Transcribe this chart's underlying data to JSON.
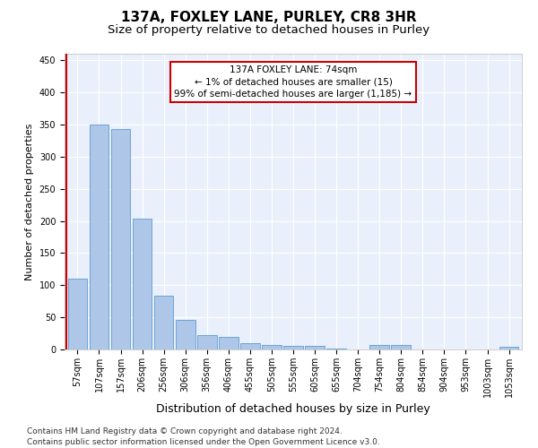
{
  "title": "137A, FOXLEY LANE, PURLEY, CR8 3HR",
  "subtitle": "Size of property relative to detached houses in Purley",
  "xlabel": "Distribution of detached houses by size in Purley",
  "ylabel": "Number of detached properties",
  "categories": [
    "57sqm",
    "107sqm",
    "157sqm",
    "206sqm",
    "256sqm",
    "306sqm",
    "356sqm",
    "406sqm",
    "455sqm",
    "505sqm",
    "555sqm",
    "605sqm",
    "655sqm",
    "704sqm",
    "754sqm",
    "804sqm",
    "854sqm",
    "904sqm",
    "953sqm",
    "1003sqm",
    "1053sqm"
  ],
  "values": [
    110,
    350,
    343,
    203,
    84,
    46,
    23,
    20,
    10,
    7,
    6,
    6,
    2,
    0,
    7,
    7,
    0,
    0,
    0,
    0,
    4
  ],
  "bar_color": "#aec6e8",
  "bar_edge_color": "#5b9bd5",
  "annotation_text": "137A FOXLEY LANE: 74sqm\n← 1% of detached houses are smaller (15)\n99% of semi-detached houses are larger (1,185) →",
  "annotation_box_color": "#ffffff",
  "annotation_box_edge_color": "#cc0000",
  "vline_color": "#cc0000",
  "ylim": [
    0,
    460
  ],
  "yticks": [
    0,
    50,
    100,
    150,
    200,
    250,
    300,
    350,
    400,
    450
  ],
  "bg_color": "#eaf0fb",
  "footer_text": "Contains HM Land Registry data © Crown copyright and database right 2024.\nContains public sector information licensed under the Open Government Licence v3.0.",
  "title_fontsize": 11,
  "subtitle_fontsize": 9.5,
  "xlabel_fontsize": 9,
  "ylabel_fontsize": 8,
  "tick_fontsize": 7,
  "annotation_fontsize": 7.5,
  "footer_fontsize": 6.5
}
